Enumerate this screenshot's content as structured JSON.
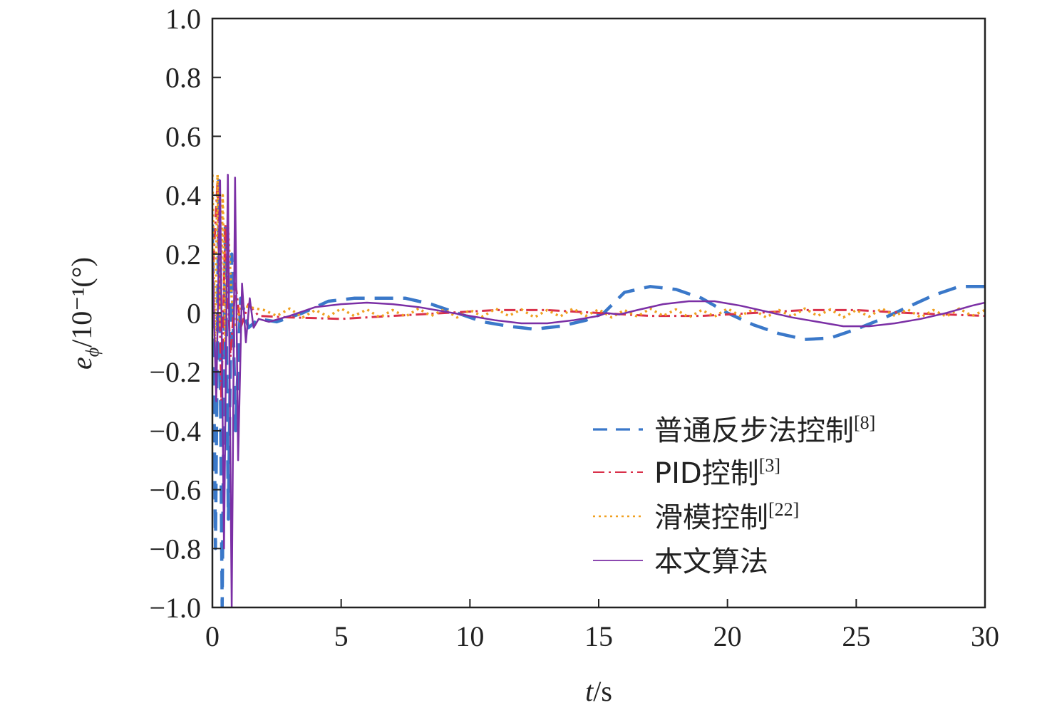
{
  "chart_data": {
    "type": "line",
    "xlabel": {
      "var": "t",
      "unit": "/s"
    },
    "ylabel": {
      "var": "e",
      "sub": "ϕ",
      "unit": "/10⁻¹(°)"
    },
    "xlim": [
      0,
      30
    ],
    "ylim": [
      -1.0,
      1.0
    ],
    "xticks": [
      0,
      5,
      10,
      15,
      20,
      25,
      30
    ],
    "xtick_labels": [
      "0",
      "5",
      "10",
      "15",
      "20",
      "25",
      "30"
    ],
    "yticks": [
      1.0,
      0.8,
      0.6,
      0.4,
      0.2,
      0,
      -0.2,
      -0.4,
      -0.6,
      -0.8,
      -1.0
    ],
    "ytick_labels": [
      "1.0",
      "0.8",
      "0.6",
      "0.4",
      "0.2",
      "0",
      "−0.2",
      "−0.4",
      "−0.6",
      "−0.8",
      "−1.0"
    ],
    "grid": false,
    "legend_position": "bottom-right",
    "series": [
      {
        "name": "普通反步法控制",
        "ref": "[8]",
        "color": "#3a78c9",
        "style": "dashed",
        "points": [
          [
            0,
            0.3
          ],
          [
            0.12,
            -0.8
          ],
          [
            0.25,
            0.45
          ],
          [
            0.38,
            -1.0
          ],
          [
            0.5,
            0.3
          ],
          [
            0.62,
            -0.7
          ],
          [
            0.75,
            0.2
          ],
          [
            0.9,
            -0.4
          ],
          [
            1.1,
            0.05
          ],
          [
            1.4,
            -0.05
          ],
          [
            1.8,
            -0.02
          ],
          [
            2.5,
            -0.03
          ],
          [
            3.5,
            0.0
          ],
          [
            4.5,
            0.04
          ],
          [
            5.5,
            0.05
          ],
          [
            6.5,
            0.05
          ],
          [
            7.5,
            0.05
          ],
          [
            8.5,
            0.03
          ],
          [
            9.5,
            0.0
          ],
          [
            10.5,
            -0.03
          ],
          [
            11.5,
            -0.045
          ],
          [
            12.5,
            -0.055
          ],
          [
            13.5,
            -0.045
          ],
          [
            14.5,
            -0.025
          ],
          [
            15.2,
            0.0
          ],
          [
            16.0,
            0.07
          ],
          [
            17.0,
            0.09
          ],
          [
            18.0,
            0.08
          ],
          [
            19.0,
            0.05
          ],
          [
            20.0,
            0.0
          ],
          [
            21.0,
            -0.04
          ],
          [
            22.0,
            -0.07
          ],
          [
            23.0,
            -0.09
          ],
          [
            24.0,
            -0.085
          ],
          [
            25.0,
            -0.055
          ],
          [
            26.0,
            -0.02
          ],
          [
            27.0,
            0.02
          ],
          [
            28.0,
            0.06
          ],
          [
            29.0,
            0.09
          ],
          [
            30.0,
            0.09
          ]
        ]
      },
      {
        "name": "PID控制",
        "ref": "[3]",
        "color": "#d9304a",
        "style": "dashdot",
        "points": [
          [
            0,
            0.1
          ],
          [
            0.2,
            0.45
          ],
          [
            0.35,
            -0.3
          ],
          [
            0.5,
            0.3
          ],
          [
            0.7,
            -0.15
          ],
          [
            0.9,
            0.1
          ],
          [
            1.1,
            -0.05
          ],
          [
            1.4,
            0.03
          ],
          [
            1.8,
            -0.01
          ],
          [
            3,
            -0.015
          ],
          [
            5,
            -0.02
          ],
          [
            7,
            -0.01
          ],
          [
            9,
            0.0
          ],
          [
            11,
            0.01
          ],
          [
            13,
            0.01
          ],
          [
            15,
            0.0
          ],
          [
            17,
            -0.01
          ],
          [
            19,
            -0.01
          ],
          [
            21,
            0.0
          ],
          [
            23,
            0.01
          ],
          [
            25,
            0.01
          ],
          [
            27,
            0.0
          ],
          [
            30,
            -0.01
          ]
        ]
      },
      {
        "name": "滑模控制",
        "ref": "[22]",
        "color": "#f0a020",
        "style": "dotted",
        "points": [
          [
            0,
            0.47
          ],
          [
            0.1,
            -0.1
          ],
          [
            0.2,
            0.47
          ],
          [
            0.3,
            -0.05
          ],
          [
            0.4,
            0.4
          ],
          [
            0.5,
            -0.1
          ],
          [
            0.6,
            0.3
          ],
          [
            0.75,
            0.05
          ],
          [
            0.9,
            -0.05
          ],
          [
            1.1,
            0.03
          ],
          [
            1.4,
            0.02
          ],
          [
            2.0,
            0.01
          ],
          [
            2.5,
            -0.01
          ],
          [
            3.0,
            0.015
          ],
          [
            3.5,
            -0.015
          ],
          [
            4.0,
            0.01
          ],
          [
            4.5,
            -0.012
          ],
          [
            5.0,
            0.015
          ],
          [
            5.5,
            -0.01
          ],
          [
            6.0,
            0.012
          ],
          [
            6.5,
            -0.015
          ],
          [
            7.0,
            0.01
          ],
          [
            7.5,
            -0.012
          ],
          [
            8.0,
            0.015
          ],
          [
            8.5,
            -0.01
          ],
          [
            9.0,
            0.012
          ],
          [
            9.5,
            -0.015
          ],
          [
            10.0,
            0.01
          ],
          [
            10.5,
            -0.012
          ],
          [
            11.0,
            0.015
          ],
          [
            11.5,
            -0.01
          ],
          [
            12.0,
            0.012
          ],
          [
            12.5,
            -0.015
          ],
          [
            13.0,
            0.01
          ],
          [
            13.5,
            -0.012
          ],
          [
            14.0,
            0.015
          ],
          [
            14.5,
            -0.01
          ],
          [
            15.0,
            0.012
          ],
          [
            15.5,
            -0.015
          ],
          [
            16.0,
            0.01
          ],
          [
            16.5,
            -0.012
          ],
          [
            17.0,
            0.015
          ],
          [
            17.5,
            -0.01
          ],
          [
            18.0,
            0.012
          ],
          [
            18.5,
            -0.015
          ],
          [
            19.0,
            0.01
          ],
          [
            19.5,
            -0.012
          ],
          [
            20.0,
            0.015
          ],
          [
            20.5,
            -0.01
          ],
          [
            21.0,
            0.012
          ],
          [
            21.5,
            -0.015
          ],
          [
            22.0,
            0.01
          ],
          [
            22.5,
            -0.012
          ],
          [
            23.0,
            0.015
          ],
          [
            23.5,
            -0.01
          ],
          [
            24.0,
            0.012
          ],
          [
            24.5,
            -0.015
          ],
          [
            25.0,
            0.01
          ],
          [
            25.5,
            -0.012
          ],
          [
            26.0,
            0.015
          ],
          [
            26.5,
            -0.01
          ],
          [
            27.0,
            0.012
          ],
          [
            27.5,
            -0.015
          ],
          [
            28.0,
            0.01
          ],
          [
            28.5,
            -0.012
          ],
          [
            29.0,
            0.015
          ],
          [
            29.5,
            -0.01
          ],
          [
            30.0,
            0.01
          ]
        ]
      },
      {
        "name": "本文算法",
        "ref": "",
        "color": "#7b2fa5",
        "style": "solid",
        "points": [
          [
            0,
            0.2
          ],
          [
            0.15,
            -0.3
          ],
          [
            0.3,
            0.45
          ],
          [
            0.45,
            -0.8
          ],
          [
            0.6,
            0.47
          ],
          [
            0.75,
            -1.0
          ],
          [
            0.88,
            0.46
          ],
          [
            1.0,
            -0.5
          ],
          [
            1.15,
            0.1
          ],
          [
            1.3,
            -0.1
          ],
          [
            1.45,
            0.05
          ],
          [
            1.6,
            -0.05
          ],
          [
            1.8,
            -0.02
          ],
          [
            2.2,
            -0.03
          ],
          [
            3.0,
            -0.01
          ],
          [
            4.0,
            0.02
          ],
          [
            5.0,
            0.03
          ],
          [
            6.0,
            0.035
          ],
          [
            7.0,
            0.03
          ],
          [
            8.0,
            0.02
          ],
          [
            9.0,
            0.005
          ],
          [
            10.0,
            -0.01
          ],
          [
            11.0,
            -0.025
          ],
          [
            12.0,
            -0.035
          ],
          [
            13.0,
            -0.035
          ],
          [
            14.0,
            -0.025
          ],
          [
            15.0,
            -0.01
          ],
          [
            15.3,
            0.0
          ],
          [
            15.8,
            -0.005
          ],
          [
            16.5,
            0.01
          ],
          [
            17.5,
            0.03
          ],
          [
            18.5,
            0.04
          ],
          [
            19.5,
            0.04
          ],
          [
            20.5,
            0.025
          ],
          [
            21.5,
            0.005
          ],
          [
            22.5,
            -0.015
          ],
          [
            23.5,
            -0.03
          ],
          [
            24.5,
            -0.045
          ],
          [
            25.5,
            -0.045
          ],
          [
            26.5,
            -0.035
          ],
          [
            27.5,
            -0.02
          ],
          [
            28.5,
            0.0
          ],
          [
            29.5,
            0.025
          ],
          [
            30.0,
            0.035
          ]
        ]
      }
    ]
  }
}
